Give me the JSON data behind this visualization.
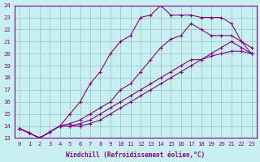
{
  "xlabel": "Windchill (Refroidissement éolien,°C)",
  "bg_color": "#c8f0f0",
  "grid_color": "#a0c8c8",
  "line_color": "#880088",
  "xlim": [
    -0.5,
    23.5
  ],
  "ylim": [
    13,
    24
  ],
  "xticks": [
    0,
    1,
    2,
    3,
    4,
    5,
    6,
    7,
    8,
    9,
    10,
    11,
    12,
    13,
    14,
    15,
    16,
    17,
    18,
    19,
    20,
    21,
    22,
    23
  ],
  "yticks": [
    13,
    14,
    15,
    16,
    17,
    18,
    19,
    20,
    21,
    22,
    23,
    24
  ],
  "line1_x": [
    0,
    1,
    2,
    3,
    4,
    5,
    6,
    7,
    8,
    9,
    10,
    11,
    12,
    13,
    14,
    15,
    16,
    17,
    18,
    19,
    20,
    21,
    22,
    23
  ],
  "line1_y": [
    13.8,
    13.4,
    13.0,
    13.5,
    14.0,
    15.0,
    16.0,
    17.5,
    18.5,
    20.0,
    21.0,
    21.5,
    23.0,
    23.2,
    24.0,
    23.2,
    23.2,
    23.2,
    23.0,
    23.0,
    23.0,
    22.5,
    21.0,
    20.0
  ],
  "line2_x": [
    0,
    1,
    2,
    3,
    4,
    5,
    6,
    7,
    8,
    9,
    10,
    11,
    12,
    13,
    14,
    15,
    16,
    17,
    18,
    19,
    20,
    21,
    22,
    23
  ],
  "line2_y": [
    13.8,
    13.4,
    13.0,
    13.5,
    14.0,
    14.2,
    14.5,
    15.0,
    15.5,
    16.0,
    17.0,
    17.5,
    18.5,
    19.5,
    20.5,
    21.2,
    21.5,
    22.5,
    22.0,
    21.5,
    21.5,
    21.5,
    21.0,
    20.5
  ],
  "line3_x": [
    0,
    1,
    2,
    3,
    4,
    5,
    6,
    7,
    8,
    9,
    10,
    11,
    12,
    13,
    14,
    15,
    16,
    17,
    18,
    19,
    20,
    21,
    22,
    23
  ],
  "line3_y": [
    13.8,
    13.4,
    13.0,
    13.5,
    14.0,
    14.0,
    14.2,
    14.5,
    15.0,
    15.5,
    16.0,
    16.5,
    17.0,
    17.5,
    18.0,
    18.5,
    19.0,
    19.5,
    19.5,
    20.0,
    20.5,
    21.0,
    20.5,
    20.0
  ],
  "line4_x": [
    0,
    1,
    2,
    3,
    4,
    5,
    6,
    7,
    8,
    9,
    10,
    11,
    12,
    13,
    14,
    15,
    16,
    17,
    18,
    19,
    20,
    21,
    22,
    23
  ],
  "line4_y": [
    13.8,
    13.4,
    13.0,
    13.5,
    14.0,
    14.0,
    14.0,
    14.2,
    14.5,
    15.0,
    15.5,
    16.0,
    16.5,
    17.0,
    17.5,
    18.0,
    18.5,
    19.0,
    19.5,
    19.8,
    20.0,
    20.2,
    20.2,
    20.0
  ]
}
